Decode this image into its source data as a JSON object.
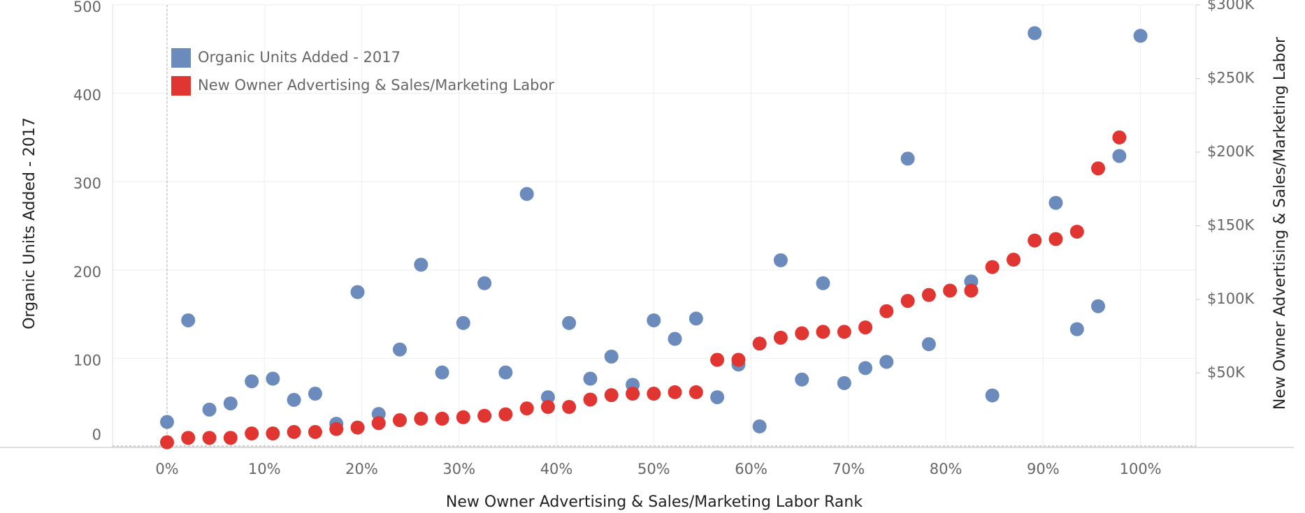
{
  "chart_data": {
    "type": "scatter",
    "x_label": "New Owner Advertising & Sales/Marketing Labor Rank",
    "y_label": "Organic Units Added - 2017",
    "y2_label": "New Owner Advertising & Sales/Marketing Labor",
    "x": [
      0,
      2.17,
      4.35,
      6.52,
      8.7,
      10.87,
      13.04,
      15.22,
      17.39,
      19.57,
      21.74,
      23.91,
      26.09,
      28.26,
      30.43,
      32.61,
      34.78,
      36.96,
      39.13,
      41.3,
      43.48,
      45.65,
      47.83,
      50,
      52.17,
      54.35,
      56.52,
      58.7,
      60.87,
      63.04,
      65.22,
      67.39,
      69.57,
      71.74,
      73.91,
      76.09,
      78.26,
      80.43,
      82.61,
      84.78,
      86.96,
      89.13,
      91.3,
      93.48,
      95.65,
      97.83,
      100
    ],
    "series": [
      {
        "name": "Organic Units Added - 2017",
        "color": "#6a8bbc",
        "axis": "y",
        "values": [
          28,
          143,
          42,
          49,
          74,
          77,
          53,
          60,
          26,
          175,
          37,
          110,
          206,
          84,
          140,
          185,
          84,
          286,
          56,
          140,
          77,
          102,
          70,
          143,
          122,
          145,
          56,
          93,
          23,
          211,
          76,
          185,
          72,
          89,
          96,
          326,
          116,
          null,
          187,
          58,
          null,
          468,
          276,
          133,
          159,
          329,
          465
        ]
      },
      {
        "name": "New Owner Advertising & Sales/Marketing Labor",
        "color": "#e03531",
        "axis": "y2",
        "values": [
          3000,
          6000,
          6000,
          6000,
          9000,
          9000,
          10000,
          10000,
          12000,
          13000,
          16000,
          18000,
          19000,
          19000,
          20000,
          21000,
          22000,
          26000,
          27000,
          27000,
          32000,
          35000,
          36000,
          36000,
          37000,
          37000,
          59000,
          59000,
          70000,
          74000,
          77000,
          78000,
          78000,
          81000,
          92000,
          99000,
          103000,
          106000,
          106000,
          122000,
          127000,
          140000,
          141000,
          146000,
          189000,
          210000,
          null
        ]
      }
    ],
    "xlim": [
      -5.6,
      105.7
    ],
    "xticks": [
      {
        "value": 0,
        "label": "0%"
      },
      {
        "value": 10,
        "label": "10%"
      },
      {
        "value": 20,
        "label": "20%"
      },
      {
        "value": 30,
        "label": "30%"
      },
      {
        "value": 40,
        "label": "40%"
      },
      {
        "value": 50,
        "label": "50%"
      },
      {
        "value": 60,
        "label": "60%"
      },
      {
        "value": 70,
        "label": "70%"
      },
      {
        "value": 80,
        "label": "80%"
      },
      {
        "value": 90,
        "label": "90%"
      },
      {
        "value": 100,
        "label": "100%"
      }
    ],
    "ylim": [
      0,
      500
    ],
    "yticks": [
      0,
      100,
      200,
      300,
      400,
      500
    ],
    "y2lim": [
      0,
      300000
    ],
    "y2ticks": [
      {
        "value": 50000,
        "label": "$50K"
      },
      {
        "value": 100000,
        "label": "$100K"
      },
      {
        "value": 150000,
        "label": "$150K"
      },
      {
        "value": 200000,
        "label": "$200K"
      },
      {
        "value": 250000,
        "label": "$250K"
      },
      {
        "value": 300000,
        "label": "$300K"
      }
    ],
    "grid": true,
    "legend": "top-left"
  }
}
